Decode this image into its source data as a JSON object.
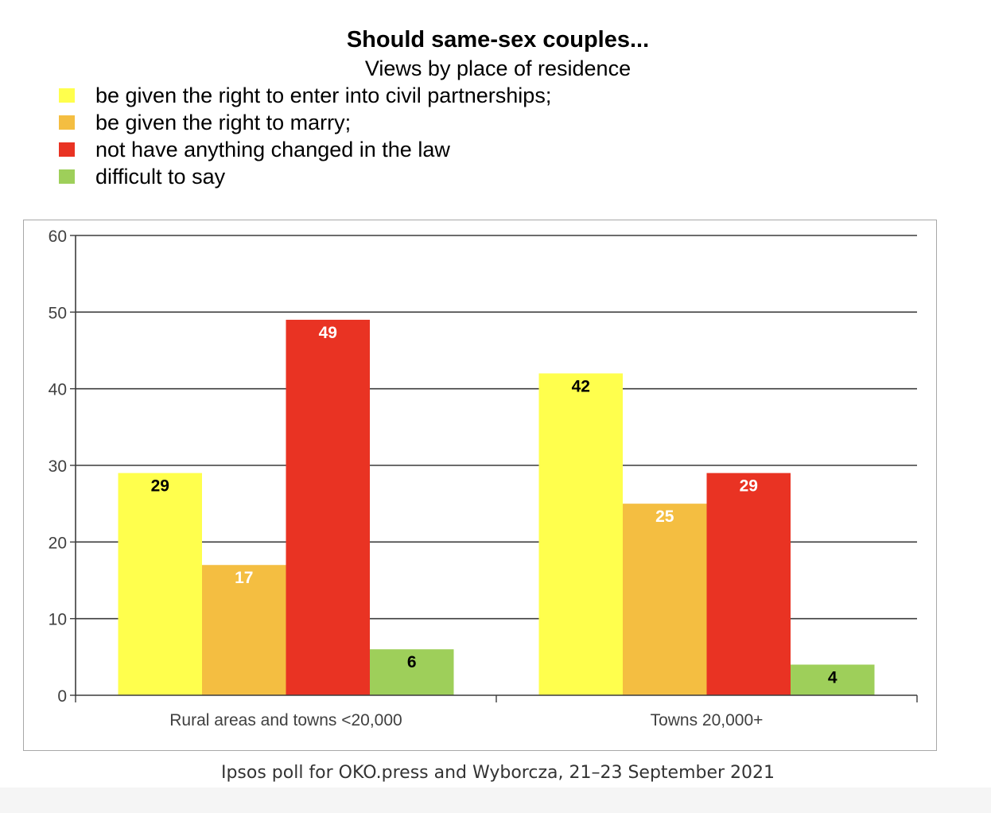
{
  "chart_data": {
    "type": "bar",
    "title": "Should same-sex couples...",
    "subtitle": "Views by place of residence",
    "categories": [
      "Rural areas and towns <20,000",
      "Towns 20,000+"
    ],
    "series": [
      {
        "name": "be given the right to enter into civil partnerships;",
        "values": [
          29,
          42
        ],
        "color": "#ffff4d",
        "label_color": "#000000"
      },
      {
        "name": "be given the right to marry;",
        "values": [
          17,
          25
        ],
        "color": "#f4be41",
        "label_color": "#ffffff"
      },
      {
        "name": "not have anything changed in the law",
        "values": [
          49,
          29
        ],
        "color": "#e93323",
        "label_color": "#ffffff"
      },
      {
        "name": "difficult to say",
        "values": [
          6,
          4
        ],
        "color": "#9ecf5a",
        "label_color": "#000000"
      }
    ],
    "ylim": [
      0,
      60
    ],
    "yticks": [
      0,
      10,
      20,
      30,
      40,
      50,
      60
    ],
    "xlabel": "",
    "ylabel": "",
    "grid": true,
    "legend_position": "top-left",
    "data_labels": true
  },
  "source": "Ipsos poll for OKO.press and Wyborcza, 21–23 September 2021"
}
